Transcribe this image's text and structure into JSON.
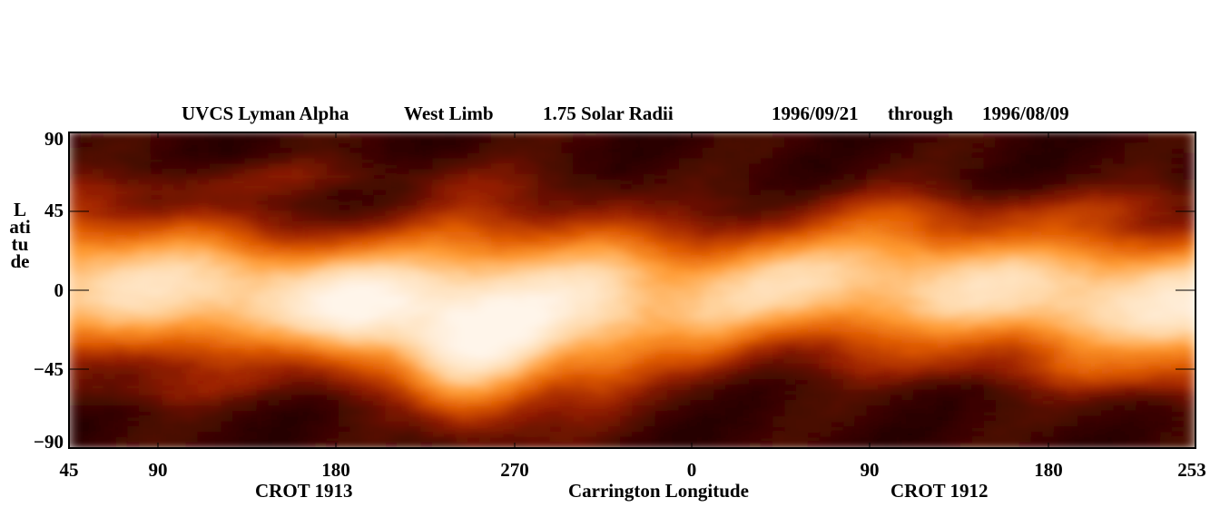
{
  "chart_data": {
    "type": "heatmap",
    "title_parts": [
      "UVCS Lyman Alpha",
      "West Limb",
      "1.75 Solar Radii",
      "1996/09/21",
      "through",
      "1996/08/09"
    ],
    "ylabel": "Latitude",
    "xlabel": "Carrington Longitude",
    "rotation_labels": [
      "CROT 1913",
      "CROT 1912"
    ],
    "yticks": [
      "90",
      "45",
      "0",
      "−45",
      "−90"
    ],
    "ytick_values": [
      90,
      45,
      0,
      -45,
      -90
    ],
    "xticks": [
      "45",
      "90",
      "180",
      "270",
      "0",
      "90",
      "180",
      "253"
    ],
    "ylim": [
      -90,
      90
    ],
    "colormap": [
      "#1a0000",
      "#4a0800",
      "#9a2000",
      "#e05a00",
      "#ff9a30",
      "#ffd8a8",
      "#fff5ea"
    ],
    "brightness_note_levels": {
      "dark_min": 0.05,
      "bright_max": 0.98
    },
    "band": {
      "center_lat": [
        5,
        0,
        -3,
        -10,
        -18,
        -10,
        -5,
        2,
        5,
        0,
        -5,
        -8
      ],
      "half_width": [
        40,
        42,
        35,
        40,
        55,
        50,
        38,
        35,
        40,
        38,
        40,
        42
      ],
      "peak": [
        0.72,
        0.75,
        0.78,
        0.9,
        0.92,
        0.8,
        0.7,
        0.72,
        0.72,
        0.74,
        0.78,
        0.8
      ]
    }
  }
}
